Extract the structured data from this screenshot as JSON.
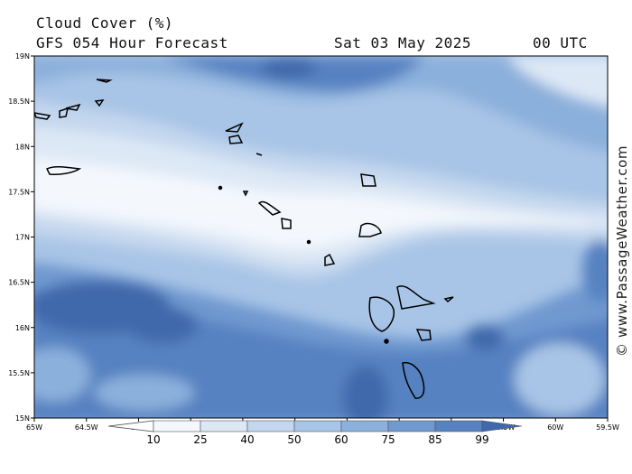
{
  "header": {
    "title": "Cloud Cover (%)",
    "subtitle": "GFS 054 Hour Forecast",
    "date": "Sat 03 May 2025",
    "time": "00 UTC"
  },
  "credit": "© www.PassageWeather.com",
  "axes": {
    "lat_labels": [
      "19N",
      "18.5N",
      "18N",
      "17.5N",
      "17N",
      "16.5N",
      "16N",
      "15.5N",
      "15N"
    ],
    "lon_labels": [
      "65W",
      "64.5W",
      "64W",
      "63.5W",
      "63W",
      "62.5W",
      "62W",
      "61.5W",
      "61W",
      "60.5W",
      "60W",
      "59.5W"
    ]
  },
  "colorbar": {
    "levels": [
      "10",
      "25",
      "40",
      "50",
      "60",
      "75",
      "85",
      "99"
    ],
    "colors": [
      "#f4f8fd",
      "#dde8f5",
      "#c4d7ee",
      "#a8c4e6",
      "#8cb0dc",
      "#6f99d0",
      "#5782c1",
      "#3f69ac"
    ]
  }
}
